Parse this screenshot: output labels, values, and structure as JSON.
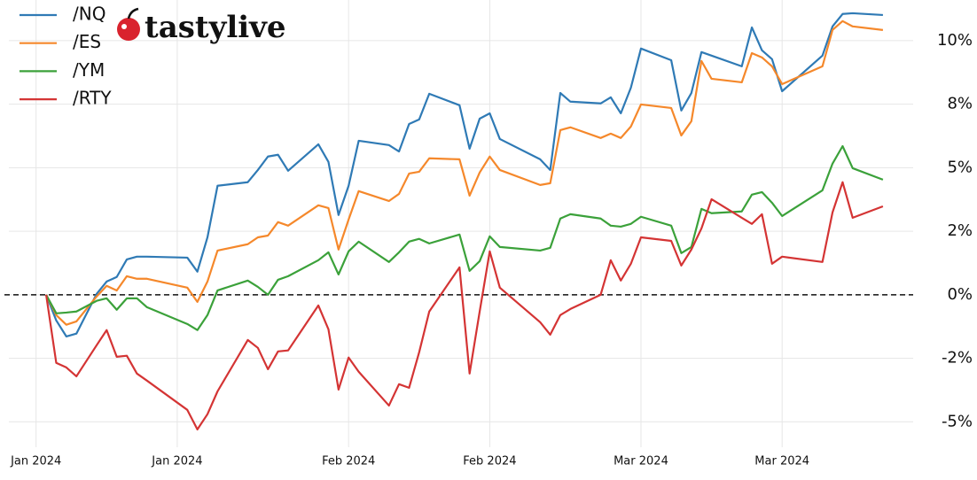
{
  "chart_data": {
    "type": "line",
    "logo_text": "tastylive",
    "x": [
      1,
      2,
      3,
      4,
      6,
      7,
      8,
      9,
      10,
      11,
      15,
      16,
      17,
      18,
      21,
      22,
      23,
      24,
      25,
      28,
      29,
      30,
      31,
      32,
      35,
      36,
      37,
      38,
      39,
      42,
      43,
      44,
      45,
      46,
      50,
      51,
      52,
      53,
      56,
      57,
      58,
      59,
      60,
      63,
      64,
      65,
      66,
      67,
      70,
      71,
      72,
      73,
      74,
      78,
      79,
      80,
      81,
      84
    ],
    "xlim": [
      -2.7,
      87
    ],
    "xticks": [
      {
        "value": 0,
        "label": "Jan 2024"
      },
      {
        "value": 14,
        "label": "Jan 2024"
      },
      {
        "value": 31,
        "label": "Feb 2024"
      },
      {
        "value": 45,
        "label": "Feb 2024"
      },
      {
        "value": 60,
        "label": "Mar 2024"
      },
      {
        "value": 74,
        "label": "Mar 2024"
      }
    ],
    "ylim": [
      -6,
      11.6
    ],
    "yticks": [
      {
        "value": -5,
        "label": "-5%"
      },
      {
        "value": -2.5,
        "label": "-2%"
      },
      {
        "value": 0,
        "label": "0%"
      },
      {
        "value": 2.5,
        "label": "2%"
      },
      {
        "value": 5,
        "label": "5%"
      },
      {
        "value": 7.5,
        "label": "8%"
      },
      {
        "value": 10,
        "label": "10%"
      }
    ],
    "grid": true,
    "legend": "upper left",
    "series": [
      {
        "name": "/NQ",
        "color": "#2f7ab5",
        "values": [
          0,
          -1.01,
          -1.64,
          -1.53,
          0.03,
          0.52,
          0.7,
          1.39,
          1.5,
          1.5,
          1.46,
          0.91,
          2.26,
          4.29,
          4.43,
          4.91,
          5.44,
          5.51,
          4.88,
          5.92,
          5.23,
          3.14,
          4.29,
          6.06,
          5.89,
          5.64,
          6.72,
          6.9,
          7.91,
          7.46,
          5.75,
          6.93,
          7.14,
          6.13,
          5.33,
          4.91,
          7.94,
          7.6,
          7.53,
          7.77,
          7.14,
          8.15,
          9.69,
          9.23,
          7.25,
          7.94,
          9.55,
          9.41,
          8.99,
          10.52,
          9.62,
          9.27,
          8.01,
          9.41,
          10.56,
          11.05,
          11.08,
          11.01
        ]
      },
      {
        "name": "/ES",
        "color": "#f5882b",
        "values": [
          0,
          -0.8,
          -1.18,
          -1.05,
          -0.07,
          0.35,
          0.17,
          0.73,
          0.63,
          0.63,
          0.28,
          -0.28,
          0.52,
          1.74,
          1.99,
          2.26,
          2.33,
          2.86,
          2.72,
          3.52,
          3.41,
          1.78,
          2.96,
          4.08,
          3.69,
          3.97,
          4.77,
          4.84,
          5.37,
          5.33,
          3.9,
          4.81,
          5.44,
          4.91,
          4.32,
          4.39,
          6.48,
          6.59,
          6.17,
          6.34,
          6.17,
          6.62,
          7.49,
          7.35,
          6.27,
          6.83,
          9.2,
          8.5,
          8.36,
          9.51,
          9.34,
          8.99,
          8.29,
          8.99,
          10.42,
          10.77,
          10.56,
          10.42
        ]
      },
      {
        "name": "/YM",
        "color": "#3ba13a",
        "values": [
          0,
          -0.73,
          -0.7,
          -0.66,
          -0.24,
          -0.14,
          -0.59,
          -0.14,
          -0.14,
          -0.49,
          -1.15,
          -1.39,
          -0.8,
          0.17,
          0.56,
          0.31,
          0,
          0.59,
          0.73,
          1.36,
          1.67,
          0.8,
          1.71,
          2.09,
          1.29,
          1.67,
          2.09,
          2.2,
          2.02,
          2.37,
          0.94,
          1.32,
          2.3,
          1.88,
          1.74,
          1.85,
          3.0,
          3.17,
          3.0,
          2.72,
          2.68,
          2.79,
          3.07,
          2.72,
          1.64,
          1.88,
          3.38,
          3.21,
          3.28,
          3.94,
          4.04,
          3.62,
          3.1,
          4.11,
          5.16,
          5.85,
          4.98,
          4.53
        ]
      },
      {
        "name": "/RTY",
        "color": "#d43434",
        "values": [
          0,
          -2.68,
          -2.86,
          -3.21,
          -1.99,
          -1.39,
          -2.44,
          -2.4,
          -3.1,
          -3.38,
          -4.53,
          -5.3,
          -4.7,
          -3.8,
          -1.78,
          -2.09,
          -2.93,
          -2.23,
          -2.19,
          -0.42,
          -1.36,
          -3.73,
          -2.47,
          -3.03,
          -4.36,
          -3.52,
          -3.66,
          -2.26,
          -0.66,
          1.08,
          -3.1,
          -0.66,
          1.71,
          0.28,
          -1.08,
          -1.57,
          -0.8,
          -0.56,
          0,
          1.36,
          0.56,
          1.22,
          2.26,
          2.12,
          1.15,
          1.78,
          2.61,
          3.76,
          3.03,
          2.79,
          3.17,
          1.22,
          1.5,
          1.29,
          3.24,
          4.43,
          3.03,
          3.48
        ]
      }
    ]
  }
}
